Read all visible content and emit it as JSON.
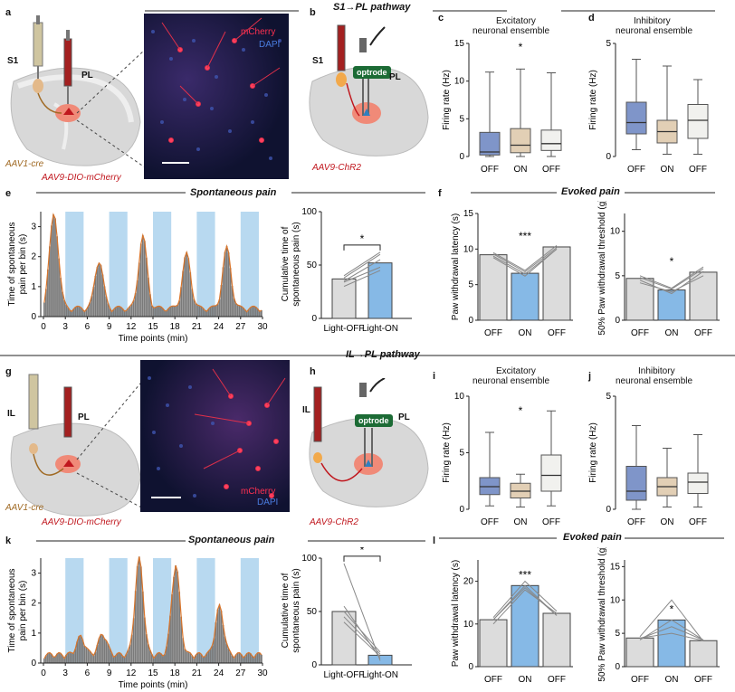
{
  "panels": {
    "a": {
      "label": "a",
      "s1": "S1",
      "pl": "PL",
      "virus1": "AAV1-cre",
      "virus2": "AAV9-DIO-mCherry",
      "mcherry": "mCherry",
      "dapi": "DAPI"
    },
    "b": {
      "label": "b",
      "title": "S1→PL pathway",
      "s1": "S1",
      "pl": "PL",
      "optrode": "optrode",
      "virus": "AAV9-ChR2"
    },
    "c": {
      "label": "c",
      "title1": "Excitatory",
      "title2": "neuronal ensemble"
    },
    "d": {
      "label": "d",
      "title1": "Inhibitory",
      "title2": "neuronal ensemble"
    },
    "e": {
      "label": "e",
      "title": "Spontaneous pain"
    },
    "f": {
      "label": "f",
      "title": "Evoked pain"
    },
    "g": {
      "label": "g",
      "il": "IL",
      "pl": "PL",
      "virus1": "AAV1-cre",
      "virus2": "AAV9-DIO-mCherry",
      "mcherry": "mCherry",
      "dapi": "DAPI"
    },
    "h": {
      "label": "h",
      "title": "IL→PL pathway",
      "il": "IL",
      "pl": "PL",
      "optrode": "optrode",
      "virus": "AAV9-ChR2"
    },
    "i": {
      "label": "i",
      "title1": "Excitatory",
      "title2": "neuronal ensemble"
    },
    "j": {
      "label": "j",
      "title1": "Inhibitory",
      "title2": "neuronal ensemble"
    },
    "k": {
      "label": "k",
      "title": "Spontaneous pain"
    },
    "l": {
      "label": "l",
      "title": "Evoked pain"
    }
  },
  "colors": {
    "light": "#b8d9f0",
    "bar": "#7a7a7a",
    "trace": "#d9752b",
    "red": "#c0171e",
    "boxBlue": "#7f95c9",
    "boxTan": "#e2cfb5",
    "boxGrey": "#f1f1ee",
    "barGrey": "#dcdcdc",
    "barBlue": "#86b9e6"
  },
  "chart_data": [
    {
      "id": "c",
      "type": "box",
      "ylabel": "Firing rate (Hz)",
      "yticks": [
        "0",
        "5",
        "10",
        "15"
      ],
      "ybreak": true,
      "categories": [
        "OFF",
        "ON",
        "OFF"
      ],
      "boxes": [
        {
          "min": 0,
          "q1": 0.2,
          "med": 0.6,
          "q3": 3.2,
          "max": 11.2
        },
        {
          "min": 0,
          "q1": 0.5,
          "med": 1.5,
          "q3": 3.7,
          "max": 11.6
        },
        {
          "min": 0,
          "q1": 0.8,
          "med": 1.7,
          "q3": 3.5,
          "max": 11.1
        }
      ],
      "sig": "*"
    },
    {
      "id": "d",
      "type": "box",
      "ylabel": "Firing rate (Hz)",
      "yticks": [
        "0",
        "5"
      ],
      "categories": [
        "OFF",
        "ON",
        "OFF"
      ],
      "boxes": [
        {
          "min": 0.3,
          "q1": 1.0,
          "med": 1.5,
          "q3": 2.4,
          "max": 4.3
        },
        {
          "min": 0.1,
          "q1": 0.6,
          "med": 1.1,
          "q3": 1.6,
          "max": 4.0
        },
        {
          "min": 0.1,
          "q1": 0.8,
          "med": 1.6,
          "q3": 2.3,
          "max": 3.4
        }
      ]
    },
    {
      "id": "e1",
      "type": "bar",
      "ylabel": "Time of spontaneous pain per bin (s)",
      "xlabel": "Time points (min)",
      "xticks": [
        "0",
        "3",
        "6",
        "9",
        "12",
        "15",
        "18",
        "21",
        "24",
        "27",
        "30"
      ],
      "yticks": [
        "0",
        "1",
        "2",
        "3"
      ],
      "light_on": [
        [
          3,
          5.5
        ],
        [
          9,
          11.5
        ],
        [
          15,
          17.5
        ],
        [
          21,
          23.5
        ],
        [
          27,
          29.5
        ]
      ]
    },
    {
      "id": "e2",
      "type": "bar",
      "ylabel": "Cumulative time of spontaneous pain (s)",
      "yticks": [
        "0",
        "50",
        "100"
      ],
      "categories": [
        "Light-OFF",
        "Light-ON"
      ],
      "values": [
        37,
        52
      ],
      "pairs": [
        [
          30,
          45
        ],
        [
          35,
          55
        ],
        [
          38,
          60
        ],
        [
          40,
          62
        ],
        [
          34,
          48
        ]
      ],
      "sig": "*"
    },
    {
      "id": "f1",
      "type": "bar",
      "ylabel": "Paw withdrawal latency (s)",
      "yticks": [
        "0",
        "5",
        "10",
        "15"
      ],
      "categories": [
        "OFF",
        "ON",
        "OFF"
      ],
      "values": [
        9.2,
        6.6,
        10.3
      ],
      "sig": "***"
    },
    {
      "id": "f2",
      "type": "bar",
      "ylabel": "50% Paw withdrawal threshold (g)",
      "yticks": [
        "0",
        "5",
        "10"
      ],
      "categories": [
        "OFF",
        "ON",
        "OFF"
      ],
      "values": [
        4.7,
        3.4,
        5.4
      ],
      "sig": "*"
    },
    {
      "id": "i",
      "type": "box",
      "ylabel": "Firing rate (Hz)",
      "yticks": [
        "0",
        "5",
        "10"
      ],
      "categories": [
        "OFF",
        "ON",
        "OFF"
      ],
      "boxes": [
        {
          "min": 0.3,
          "q1": 1.3,
          "med": 2.0,
          "q3": 2.8,
          "max": 6.8
        },
        {
          "min": 0.2,
          "q1": 1.0,
          "med": 1.6,
          "q3": 2.3,
          "max": 3.1
        },
        {
          "min": 0.3,
          "q1": 1.6,
          "med": 3.0,
          "q3": 4.8,
          "max": 8.7
        }
      ],
      "sig": "*"
    },
    {
      "id": "j",
      "type": "box",
      "ylabel": "Firing rate (Hz)",
      "yticks": [
        "0",
        "5"
      ],
      "categories": [
        "OFF",
        "ON",
        "OFF"
      ],
      "boxes": [
        {
          "min": 0.0,
          "q1": 0.4,
          "med": 0.8,
          "q3": 1.9,
          "max": 3.7
        },
        {
          "min": 0.1,
          "q1": 0.6,
          "med": 1.0,
          "q3": 1.4,
          "max": 2.7
        },
        {
          "min": 0.1,
          "q1": 0.7,
          "med": 1.2,
          "q3": 1.6,
          "max": 3.3
        }
      ]
    },
    {
      "id": "k1",
      "type": "bar",
      "ylabel": "Time of spontaneous pain per bin (s)",
      "xlabel": "Time points (min)",
      "xticks": [
        "0",
        "3",
        "6",
        "9",
        "12",
        "15",
        "18",
        "21",
        "24",
        "27",
        "30"
      ],
      "yticks": [
        "0",
        "1",
        "2",
        "3"
      ],
      "light_on": [
        [
          3,
          5.5
        ],
        [
          9,
          11.5
        ],
        [
          15,
          17.5
        ],
        [
          21,
          23.5
        ],
        [
          27,
          29.5
        ]
      ]
    },
    {
      "id": "k2",
      "type": "bar",
      "ylabel": "Cumulative time of spontaneous pain (s)",
      "yticks": [
        "0",
        "50",
        "100"
      ],
      "categories": [
        "Light-OFF",
        "Light-ON"
      ],
      "values": [
        50,
        9
      ],
      "pairs": [
        [
          95,
          4
        ],
        [
          55,
          6
        ],
        [
          45,
          10
        ],
        [
          40,
          8
        ],
        [
          50,
          12
        ]
      ],
      "sig": "*"
    },
    {
      "id": "l1",
      "type": "bar",
      "ylabel": "Paw withdrawal latency (s)",
      "yticks": [
        "0",
        "10",
        "20"
      ],
      "categories": [
        "OFF",
        "ON",
        "OFF"
      ],
      "values": [
        11,
        19,
        12.5
      ],
      "sig": "***"
    },
    {
      "id": "l2",
      "type": "bar",
      "ylabel": "50% Paw withdrawal threshold (g)",
      "yticks": [
        "0",
        "5",
        "10",
        "15"
      ],
      "categories": [
        "OFF",
        "ON",
        "OFF"
      ],
      "values": [
        4.3,
        7,
        3.9
      ],
      "sig": "*"
    }
  ]
}
